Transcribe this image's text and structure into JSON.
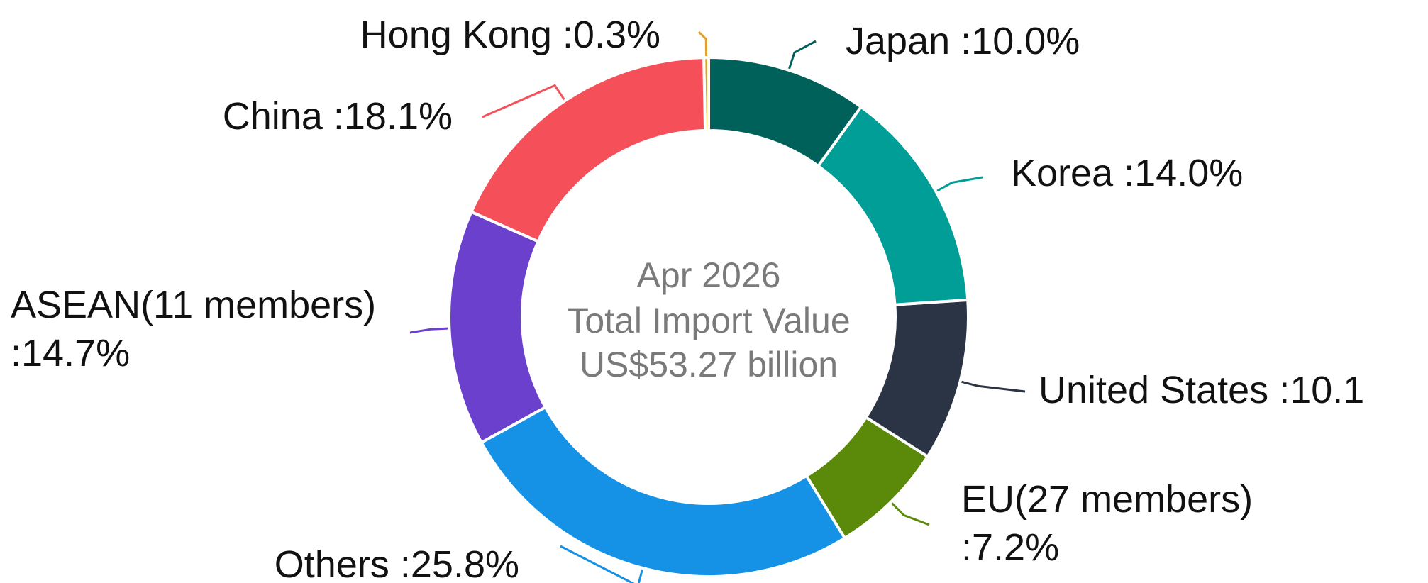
{
  "chart_data": {
    "type": "pie",
    "donut": true,
    "center_text": [
      "Apr 2026",
      "Total Import Value",
      "US$53.27 billion"
    ],
    "categories": [
      "Japan",
      "Korea",
      "United States",
      "EU(27 members)",
      "Others",
      "ASEAN(11 members)",
      "China",
      "Hong Kong"
    ],
    "values": [
      10.0,
      14.0,
      10.1,
      7.2,
      25.8,
      14.7,
      18.1,
      0.3
    ],
    "value_labels": [
      ":10.0%",
      ":14.0%",
      ":10.1",
      ":7.2%",
      ":25.8%",
      ":14.7%",
      ":18.1%",
      ":0.3%"
    ],
    "colors": [
      "#00605a",
      "#009e96",
      "#2a3444",
      "#5b8a0a",
      "#1592e6",
      "#6a40cc",
      "#f5505a",
      "#e0a030"
    ]
  }
}
